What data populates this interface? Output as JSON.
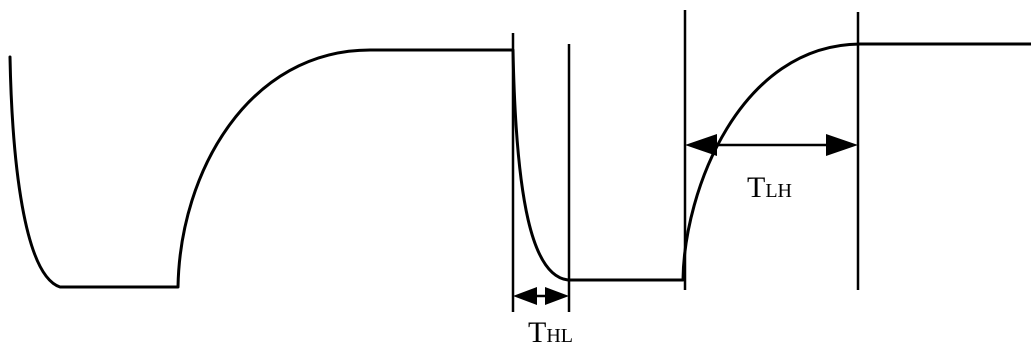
{
  "labels": {
    "t_hl": {
      "main": "T",
      "sub": "HL"
    },
    "t_lh": {
      "main": "T",
      "sub": "LH"
    }
  },
  "colors": {
    "stroke": "#000000",
    "background": "#ffffff"
  }
}
